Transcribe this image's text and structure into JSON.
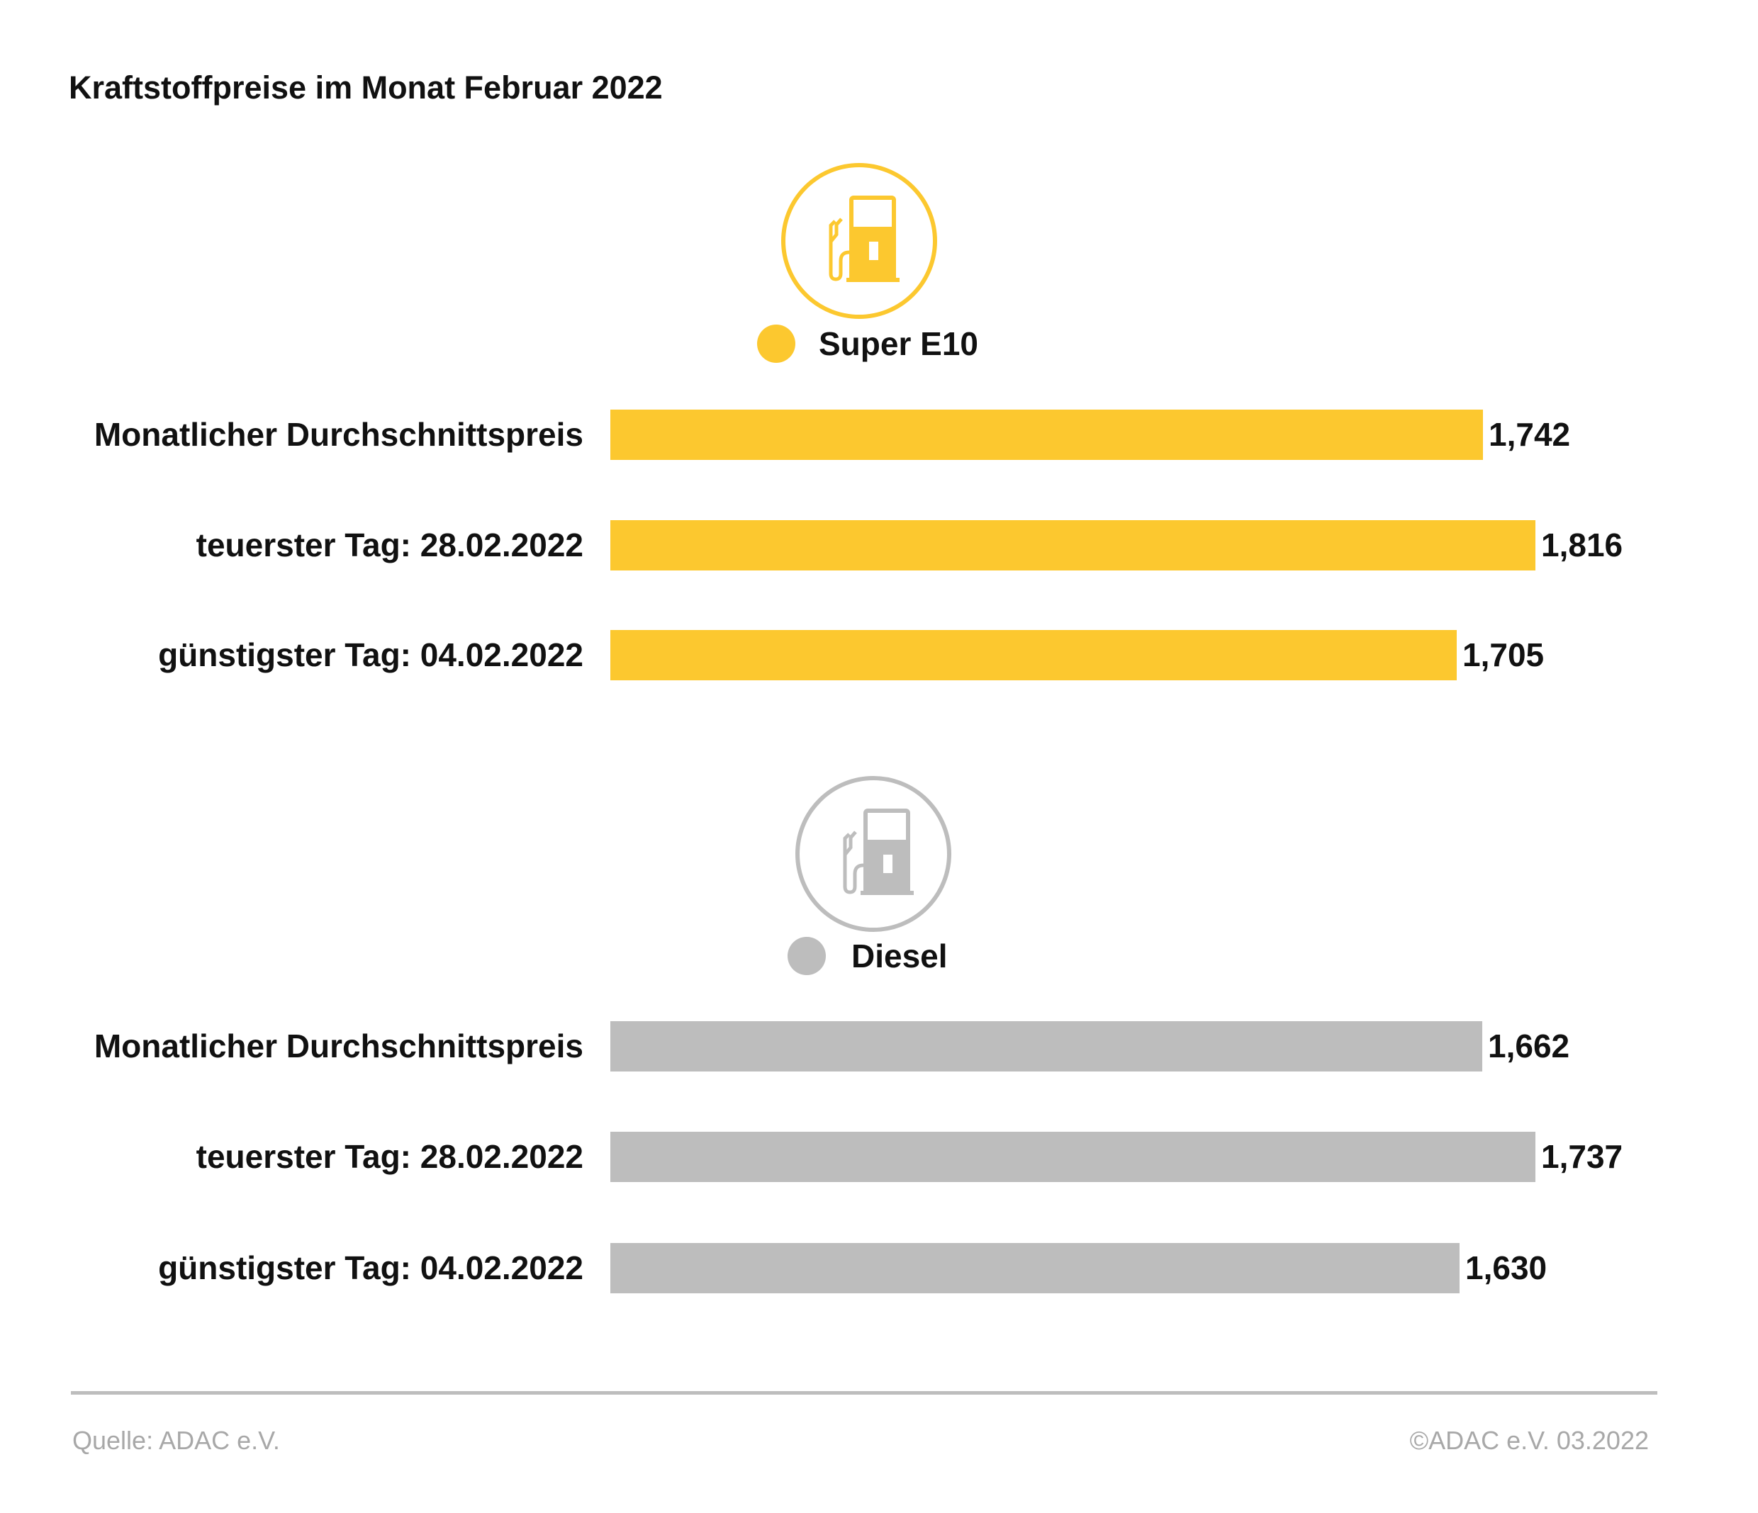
{
  "chart_data": [
    {
      "type": "bar",
      "orientation": "horizontal",
      "title": "Kraftstoffpreise im Monat Februar 2022",
      "series_name": "Super E10",
      "color": "#FCC82F",
      "categories": [
        "Monatlicher Durchschnittspreis",
        "teuerster Tag: 28.02.2022",
        "günstigster Tag: 04.02.2022"
      ],
      "values": [
        1.742,
        1.816,
        1.705
      ],
      "value_labels": [
        "1,742",
        "1,816",
        "1,705"
      ]
    },
    {
      "type": "bar",
      "orientation": "horizontal",
      "series_name": "Diesel",
      "color": "#BDBDBD",
      "categories": [
        "Monatlicher Durchschnittspreis",
        "teuerster Tag: 28.02.2022",
        "günstigster Tag: 04.02.2022"
      ],
      "values": [
        1.662,
        1.737,
        1.63
      ],
      "value_labels": [
        "1,662",
        "1,737",
        "1,630"
      ]
    }
  ],
  "icons": [
    "fuel-pump-icon"
  ],
  "footer": {
    "source": "Quelle: ADAC e.V.",
    "copyright": "©ADAC e.V. 03.2022"
  }
}
